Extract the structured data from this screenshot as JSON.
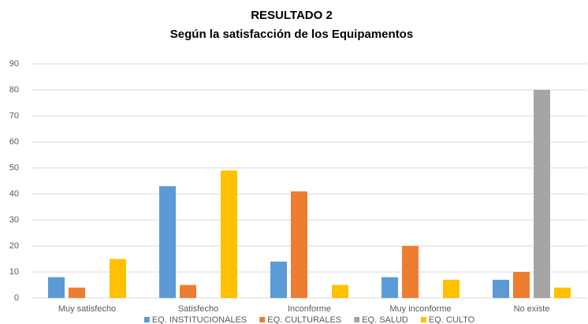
{
  "chart_data": {
    "type": "bar",
    "title": "RESULTADO  2",
    "subtitle": "Según la satisfacción de los Equipamentos",
    "categories": [
      "Muy satisfecho",
      "Satisfecho",
      "Inconforme",
      "Muy inconforme",
      "No existe"
    ],
    "series": [
      {
        "name": "EQ. INSTITUCIONALES",
        "color": "#5b9bd5",
        "values": [
          8,
          43,
          14,
          8,
          7
        ]
      },
      {
        "name": "EQ. CULTURALES",
        "color": "#ed7d31",
        "values": [
          4,
          5,
          41,
          20,
          10
        ]
      },
      {
        "name": "EQ. SALUD",
        "color": "#a5a5a5",
        "values": [
          0,
          0,
          0,
          0,
          80
        ]
      },
      {
        "name": "EQ. CULTO",
        "color": "#ffc000",
        "values": [
          15,
          49,
          5,
          7,
          4
        ]
      }
    ],
    "ylim": [
      0,
      90
    ],
    "yticks": [
      0,
      10,
      20,
      30,
      40,
      50,
      60,
      70,
      80,
      90
    ],
    "grid": true,
    "legend": "bottom"
  }
}
